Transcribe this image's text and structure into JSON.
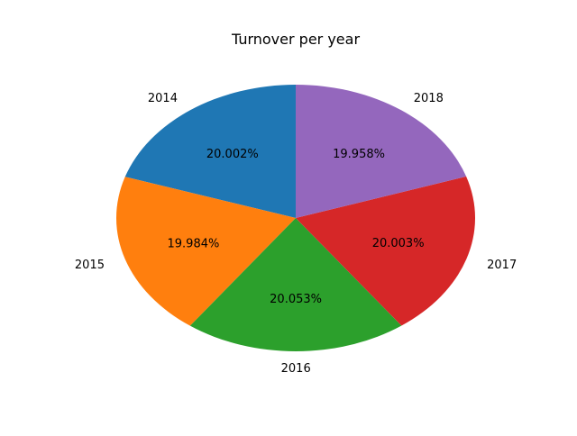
{
  "chart_data": {
    "type": "pie",
    "title": "Turnover per year",
    "categories": [
      "2014",
      "2015",
      "2016",
      "2017",
      "2018"
    ],
    "values": [
      20.002,
      19.984,
      20.053,
      20.003,
      19.958
    ],
    "percent_labels": [
      "20.002%",
      "19.984%",
      "20.053%",
      "20.003%",
      "19.958%"
    ],
    "colors": [
      "#1f77b4",
      "#ff7f0e",
      "#2ca02c",
      "#d62728",
      "#9467bd"
    ],
    "start_angle_deg": 90,
    "direction": "counterclockwise",
    "legend": "none"
  }
}
